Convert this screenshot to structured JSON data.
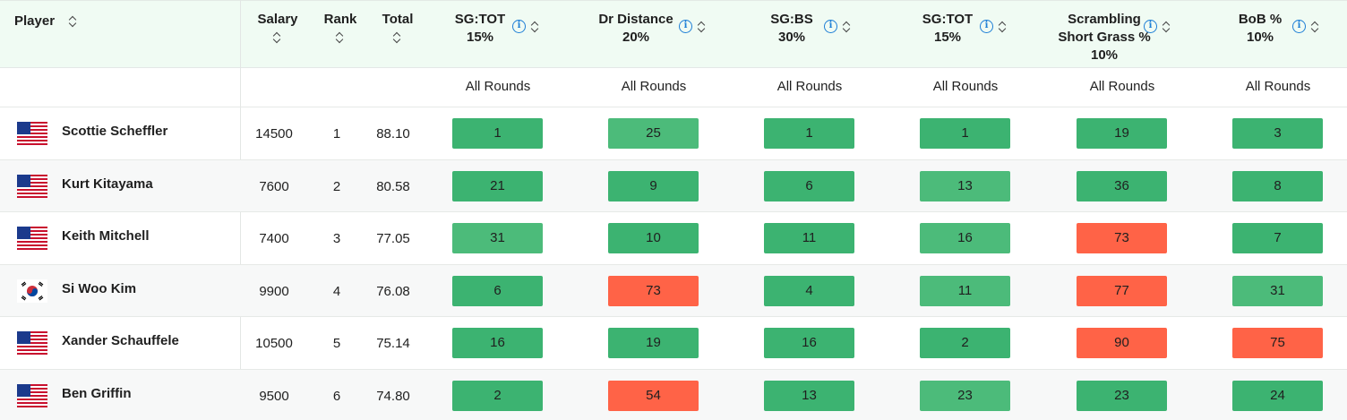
{
  "header": {
    "player": "Player",
    "salary": "Salary",
    "rank": "Rank",
    "total": "Total",
    "metrics": [
      {
        "line1": "SG:TOT",
        "line2": "15%",
        "line3": ""
      },
      {
        "line1": "Dr Distance",
        "line2": "20%",
        "line3": ""
      },
      {
        "line1": "SG:BS",
        "line2": "30%",
        "line3": ""
      },
      {
        "line1": "SG:TOT",
        "line2": "15%",
        "line3": ""
      },
      {
        "line1": "Scrambling",
        "line2": "Short Grass %",
        "line3": "10%"
      },
      {
        "line1": "BoB %",
        "line2": "10%",
        "line3": ""
      }
    ],
    "info_glyph": "i"
  },
  "subheader": [
    "All Rounds",
    "All Rounds",
    "All Rounds",
    "All Rounds",
    "All Rounds",
    "All Rounds"
  ],
  "colors": {
    "good": "#3cb371",
    "good_light": "#4cbb7a",
    "bad": "#ff6347"
  },
  "rows": [
    {
      "flag": "usa",
      "name": "Scottie Scheffler",
      "salary": "14500",
      "rank": "1",
      "total": "88.10",
      "cells": [
        {
          "v": "1",
          "c": "good"
        },
        {
          "v": "25",
          "c": "good_light"
        },
        {
          "v": "1",
          "c": "good"
        },
        {
          "v": "1",
          "c": "good"
        },
        {
          "v": "19",
          "c": "good"
        },
        {
          "v": "3",
          "c": "good"
        }
      ]
    },
    {
      "flag": "usa",
      "name": "Kurt Kitayama",
      "salary": "7600",
      "rank": "2",
      "total": "80.58",
      "cells": [
        {
          "v": "21",
          "c": "good"
        },
        {
          "v": "9",
          "c": "good"
        },
        {
          "v": "6",
          "c": "good"
        },
        {
          "v": "13",
          "c": "good_light"
        },
        {
          "v": "36",
          "c": "good"
        },
        {
          "v": "8",
          "c": "good"
        }
      ]
    },
    {
      "flag": "usa",
      "name": "Keith Mitchell",
      "salary": "7400",
      "rank": "3",
      "total": "77.05",
      "cells": [
        {
          "v": "31",
          "c": "good_light"
        },
        {
          "v": "10",
          "c": "good"
        },
        {
          "v": "11",
          "c": "good"
        },
        {
          "v": "16",
          "c": "good_light"
        },
        {
          "v": "73",
          "c": "bad"
        },
        {
          "v": "7",
          "c": "good"
        }
      ]
    },
    {
      "flag": "kor",
      "name": "Si Woo Kim",
      "salary": "9900",
      "rank": "4",
      "total": "76.08",
      "cells": [
        {
          "v": "6",
          "c": "good"
        },
        {
          "v": "73",
          "c": "bad"
        },
        {
          "v": "4",
          "c": "good"
        },
        {
          "v": "11",
          "c": "good_light"
        },
        {
          "v": "77",
          "c": "bad"
        },
        {
          "v": "31",
          "c": "good_light"
        }
      ]
    },
    {
      "flag": "usa",
      "name": "Xander Schauffele",
      "salary": "10500",
      "rank": "5",
      "total": "75.14",
      "cells": [
        {
          "v": "16",
          "c": "good"
        },
        {
          "v": "19",
          "c": "good"
        },
        {
          "v": "16",
          "c": "good"
        },
        {
          "v": "2",
          "c": "good"
        },
        {
          "v": "90",
          "c": "bad"
        },
        {
          "v": "75",
          "c": "bad"
        }
      ]
    },
    {
      "flag": "usa",
      "name": "Ben Griffin",
      "salary": "9500",
      "rank": "6",
      "total": "74.80",
      "cells": [
        {
          "v": "2",
          "c": "good"
        },
        {
          "v": "54",
          "c": "bad"
        },
        {
          "v": "13",
          "c": "good"
        },
        {
          "v": "23",
          "c": "good_light"
        },
        {
          "v": "23",
          "c": "good"
        },
        {
          "v": "24",
          "c": "good"
        }
      ]
    }
  ]
}
